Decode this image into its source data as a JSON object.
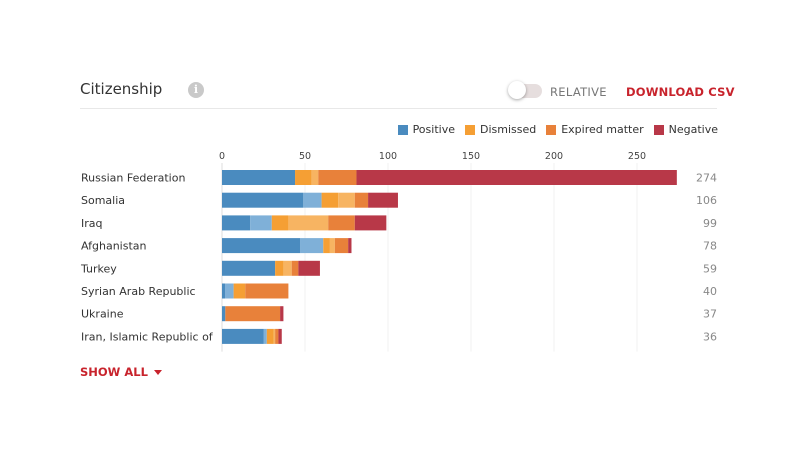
{
  "header": {
    "title": "Citizenship",
    "info_icon": "info-icon",
    "toggle_label": "RELATIVE",
    "toggle_on": false,
    "download_label": "DOWNLOAD CSV"
  },
  "footer": {
    "show_all_label": "SHOW ALL",
    "show_all_icon": "caret-down-icon"
  },
  "colors": {
    "Positive": "#4a8bbf",
    "Positive (light)": "#7fb0d8",
    "Dismissed": "#f59f34",
    "Dismissed (light)": "#f7b462",
    "Expired matter": "#e8813a",
    "Negative": "#b83848",
    "accent": "#c8232c"
  },
  "chart_data": {
    "type": "bar",
    "orientation": "horizontal",
    "stacked": true,
    "title": "Citizenship",
    "xlabel": "",
    "ylabel": "",
    "xlim": [
      0,
      274
    ],
    "xticks": [
      0,
      50,
      100,
      150,
      200,
      250
    ],
    "grid": true,
    "legend_position": "top-right",
    "legend": [
      "Positive",
      "Dismissed",
      "Expired matter",
      "Negative"
    ],
    "categories": [
      "Russian Federation",
      "Somalia",
      "Iraq",
      "Afghanistan",
      "Turkey",
      "Syrian Arab Republic",
      "Ukraine",
      "Iran, Islamic Republic of"
    ],
    "totals": [
      274,
      106,
      99,
      78,
      59,
      40,
      37,
      36
    ],
    "series": [
      {
        "name": "Positive",
        "color": "#4a8bbf",
        "values": [
          44,
          49,
          17,
          47,
          32,
          2,
          2,
          25
        ]
      },
      {
        "name": "Positive (light)",
        "color": "#7fb0d8",
        "values": [
          0,
          11,
          13,
          14,
          0,
          5,
          0,
          2
        ]
      },
      {
        "name": "Dismissed",
        "color": "#f59f34",
        "values": [
          10,
          10,
          10,
          4,
          5,
          7,
          0,
          4
        ]
      },
      {
        "name": "Dismissed (light)",
        "color": "#f7b462",
        "values": [
          4,
          10,
          24,
          3,
          5,
          0,
          0,
          1
        ]
      },
      {
        "name": "Expired matter",
        "color": "#e8813a",
        "values": [
          23,
          8,
          16,
          8,
          4,
          26,
          33,
          2
        ]
      },
      {
        "name": "Negative",
        "color": "#b83848",
        "values": [
          193,
          18,
          19,
          2,
          13,
          0,
          2,
          2
        ]
      }
    ]
  }
}
